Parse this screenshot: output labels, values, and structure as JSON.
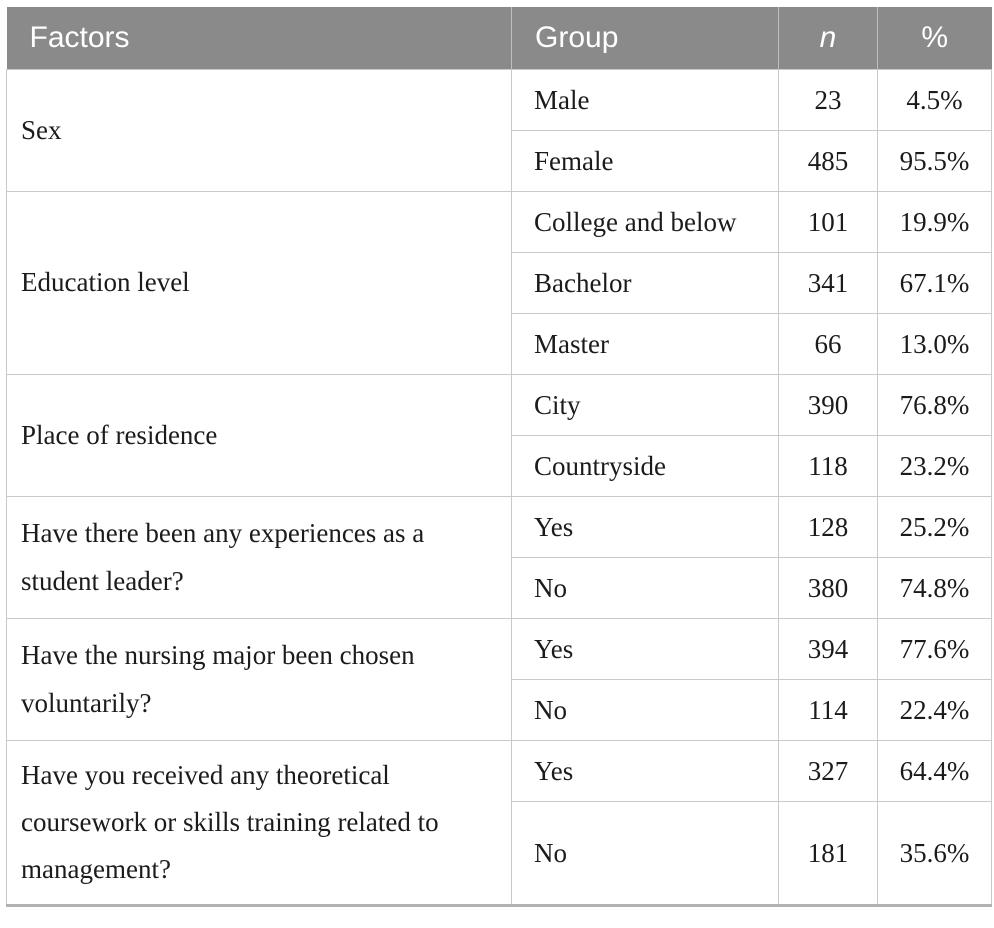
{
  "table": {
    "header": [
      "Factors",
      "Group",
      "n",
      "%"
    ],
    "groups": [
      {
        "factor": "Sex",
        "rows": [
          {
            "group": "Male",
            "n": "23",
            "pct": "4.5%"
          },
          {
            "group": "Female",
            "n": "485",
            "pct": "95.5%"
          }
        ]
      },
      {
        "factor": "Education level",
        "rows": [
          {
            "group": "College and below",
            "n": "101",
            "pct": "19.9%"
          },
          {
            "group": "Bachelor",
            "n": "341",
            "pct": "67.1%"
          },
          {
            "group": "Master",
            "n": "66",
            "pct": "13.0%"
          }
        ]
      },
      {
        "factor": "Place of residence",
        "rows": [
          {
            "group": "City",
            "n": "390",
            "pct": "76.8%"
          },
          {
            "group": "Countryside",
            "n": "118",
            "pct": "23.2%"
          }
        ]
      },
      {
        "factor": "Have there been any experiences as a student leader?",
        "rows": [
          {
            "group": "Yes",
            "n": "128",
            "pct": "25.2%"
          },
          {
            "group": "No",
            "n": "380",
            "pct": "74.8%"
          }
        ]
      },
      {
        "factor": "Have the nursing major been chosen voluntarily?",
        "rows": [
          {
            "group": "Yes",
            "n": "394",
            "pct": "77.6%"
          },
          {
            "group": "No",
            "n": "114",
            "pct": "22.4%"
          }
        ]
      },
      {
        "factor": "Have you received any theoretical coursework or skills training related to management?",
        "rows": [
          {
            "group": "Yes",
            "n": "327",
            "pct": "64.4%"
          },
          {
            "group": "No",
            "n": "181",
            "pct": "35.6%"
          }
        ]
      }
    ],
    "colors": {
      "header_bg": "#8a8a8a",
      "header_text": "#ffffff",
      "body_text": "#1b1b1b",
      "grid_border": "#c9c9c9",
      "bottom_rule": "#b2b2b2"
    }
  }
}
